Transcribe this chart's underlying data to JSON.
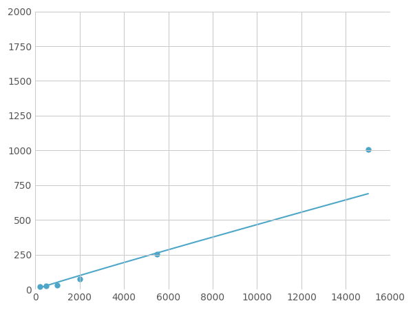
{
  "x": [
    200,
    500,
    1000,
    2000,
    5500,
    15000
  ],
  "y": [
    18,
    25,
    30,
    75,
    255,
    1005
  ],
  "line_color": "#4DA6C8",
  "marker_color": "#4DA6C8",
  "marker_size": 5,
  "marker_style": "o",
  "line_width": 1.5,
  "xlim": [
    0,
    16000
  ],
  "ylim": [
    0,
    2000
  ],
  "xticks": [
    0,
    2000,
    4000,
    6000,
    8000,
    10000,
    12000,
    14000,
    16000
  ],
  "yticks": [
    0,
    250,
    500,
    750,
    1000,
    1250,
    1500,
    1750,
    2000
  ],
  "grid": true,
  "background_color": "#ffffff",
  "plot_background": "#ffffff"
}
